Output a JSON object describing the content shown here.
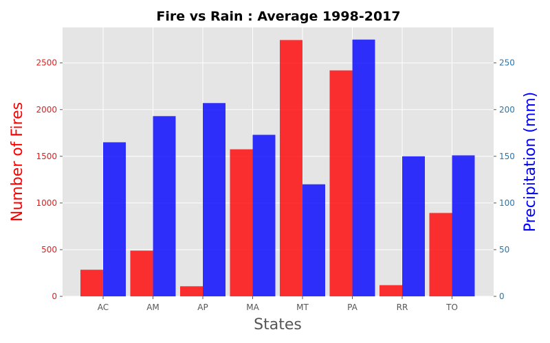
{
  "chart_data": {
    "type": "bar",
    "title": "Fire vs Rain : Average 1998-2017",
    "xlabel": "States",
    "ylabel_left": "Number of Fires",
    "ylabel_right": "Precipitation (mm)",
    "categories": [
      "AC",
      "AM",
      "AP",
      "MA",
      "MT",
      "PA",
      "RR",
      "TO"
    ],
    "series": [
      {
        "axis": "left",
        "color": "#ff0000",
        "values": [
          285,
          490,
          108,
          1575,
          2745,
          2420,
          120,
          893
        ]
      },
      {
        "axis": "right",
        "color": "#0000ff",
        "values": [
          165,
          193,
          207,
          173,
          120,
          275,
          150,
          151
        ]
      }
    ],
    "ylim_left": [
      0,
      2880
    ],
    "ylim_right": [
      0,
      288
    ],
    "yticks_left": [
      "0",
      "500",
      "1000",
      "1500",
      "2000",
      "2500"
    ],
    "yticks_right": [
      "0",
      "50",
      "100",
      "150",
      "200",
      "250"
    ],
    "ytick_values_left": [
      0,
      500,
      1000,
      1500,
      2000,
      2500
    ],
    "ytick_values_right": [
      0,
      50,
      100,
      150,
      200,
      250
    ],
    "grid": true,
    "background": "#e5e5e5",
    "colors": {
      "left_axis": "#e81a1a",
      "right_axis": "#1f77b4",
      "xlabel": "#555555"
    }
  }
}
